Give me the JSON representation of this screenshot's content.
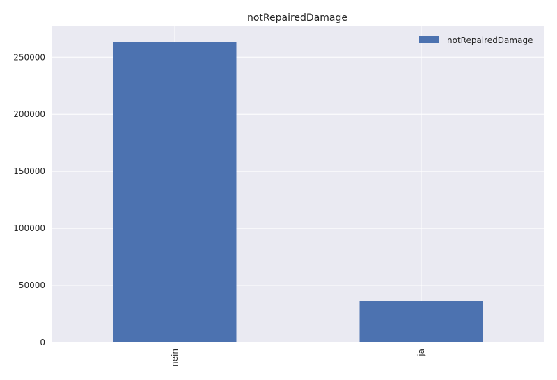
{
  "chart_data": {
    "type": "bar",
    "title": "notRepairedDamage",
    "categories": [
      "nein",
      "ja"
    ],
    "series": [
      {
        "name": "notRepairedDamage",
        "values": [
          263200,
          36300
        ]
      }
    ],
    "ylim": [
      0,
      277000
    ],
    "yticks": [
      0,
      50000,
      100000,
      150000,
      200000,
      250000
    ],
    "ytick_labels": [
      "0",
      "50000",
      "100000",
      "150000",
      "200000",
      "250000"
    ],
    "xlabel": "",
    "ylabel": "",
    "grid": true,
    "legend_position": "top-right",
    "x_tick_rotation": "vertical",
    "colors": {
      "bar": "#4c72b0",
      "plot_background": "#eaeaf2",
      "grid": "#ffffff",
      "text": "#262626"
    }
  }
}
